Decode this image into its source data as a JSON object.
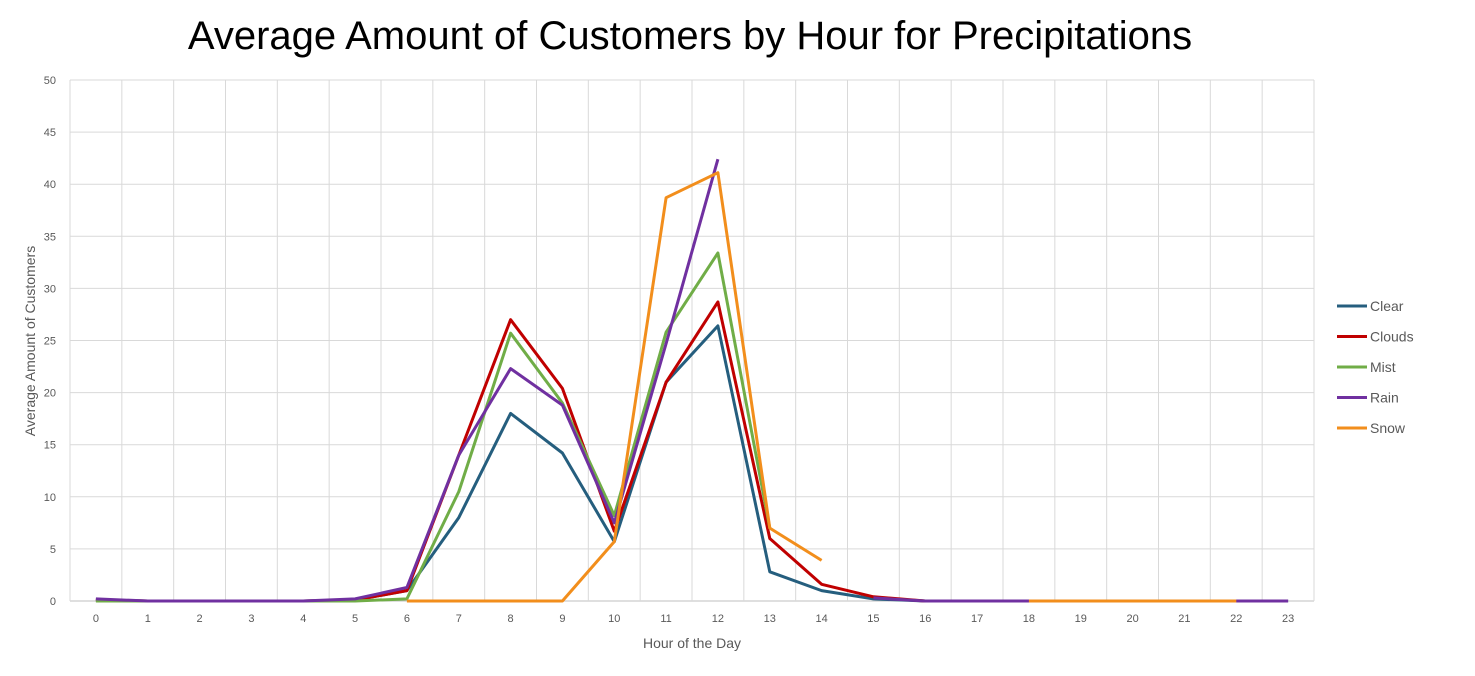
{
  "chart_data": {
    "type": "line",
    "title": "Average Amount of Customers by Hour for Precipitations",
    "xlabel": "Hour of the Day",
    "ylabel": "Average Amount of Customers",
    "xlim": [
      0,
      23
    ],
    "ylim": [
      0,
      50
    ],
    "y_ticks": [
      "0",
      "5",
      "10",
      "15",
      "20",
      "25",
      "30",
      "35",
      "40",
      "45",
      "50"
    ],
    "x_ticks": [
      "0",
      "1",
      "2",
      "3",
      "4",
      "5",
      "6",
      "7",
      "8",
      "9",
      "10",
      "11",
      "12",
      "13",
      "14",
      "15",
      "16",
      "17",
      "18",
      "19",
      "20",
      "21",
      "22",
      "23"
    ],
    "grid": true,
    "legend_position": "right",
    "series": [
      {
        "name": "Clear",
        "color": "#255E7E",
        "x": [
          0,
          1,
          2,
          3,
          4,
          5,
          6,
          7,
          8,
          9,
          10,
          11,
          12,
          13,
          14,
          15,
          16,
          17,
          18,
          19,
          20,
          21,
          22,
          23
        ],
        "values": [
          0.1,
          0,
          0,
          0,
          0,
          0.1,
          1.0,
          8.0,
          18.0,
          14.2,
          5.7,
          21.0,
          26.4,
          2.8,
          1.0,
          0.2,
          0,
          0,
          0,
          0,
          0,
          0,
          0,
          0
        ]
      },
      {
        "name": "Clouds",
        "color": "#C00000",
        "x": [
          0,
          1,
          2,
          3,
          4,
          5,
          6,
          7,
          8,
          9,
          10,
          11,
          12,
          13,
          14,
          15,
          16,
          17,
          18
        ],
        "values": [
          0.1,
          0,
          0,
          0,
          0,
          0.1,
          1.0,
          14.0,
          27.0,
          20.4,
          6.7,
          21.0,
          28.7,
          6.0,
          1.6,
          0.4,
          0,
          0,
          0
        ]
      },
      {
        "name": "Mist",
        "color": "#70AD47",
        "x": [
          0,
          1,
          2,
          3,
          4,
          5,
          6,
          7,
          8,
          9,
          10,
          11,
          12,
          13
        ],
        "values": [
          0,
          0,
          0,
          0,
          0,
          0,
          0.2,
          10.5,
          25.7,
          19.0,
          8.2,
          25.8,
          33.4,
          7.0
        ]
      },
      {
        "name": "Rain",
        "color": "#7030A0",
        "x": [
          0,
          1,
          2,
          3,
          4,
          5,
          6,
          7,
          8,
          9,
          10,
          11,
          12,
          null,
          15,
          16,
          17,
          18,
          19,
          20,
          21,
          22,
          23
        ],
        "values": [
          0.2,
          0,
          0,
          0,
          0,
          0.2,
          1.3,
          14.0,
          22.3,
          18.8,
          7.5,
          24.7,
          42.4,
          null,
          0.3,
          0,
          0,
          0,
          0,
          0,
          0,
          0,
          0
        ]
      },
      {
        "name": "Snow",
        "color": "#F28E1C",
        "x": [
          6,
          7,
          8,
          9,
          10,
          11,
          12,
          13,
          14,
          null,
          18,
          19,
          20,
          21,
          22
        ],
        "values": [
          0,
          0,
          0,
          0,
          5.7,
          38.7,
          41.1,
          7.0,
          3.9,
          null,
          0,
          0,
          0,
          0,
          0
        ]
      }
    ]
  }
}
